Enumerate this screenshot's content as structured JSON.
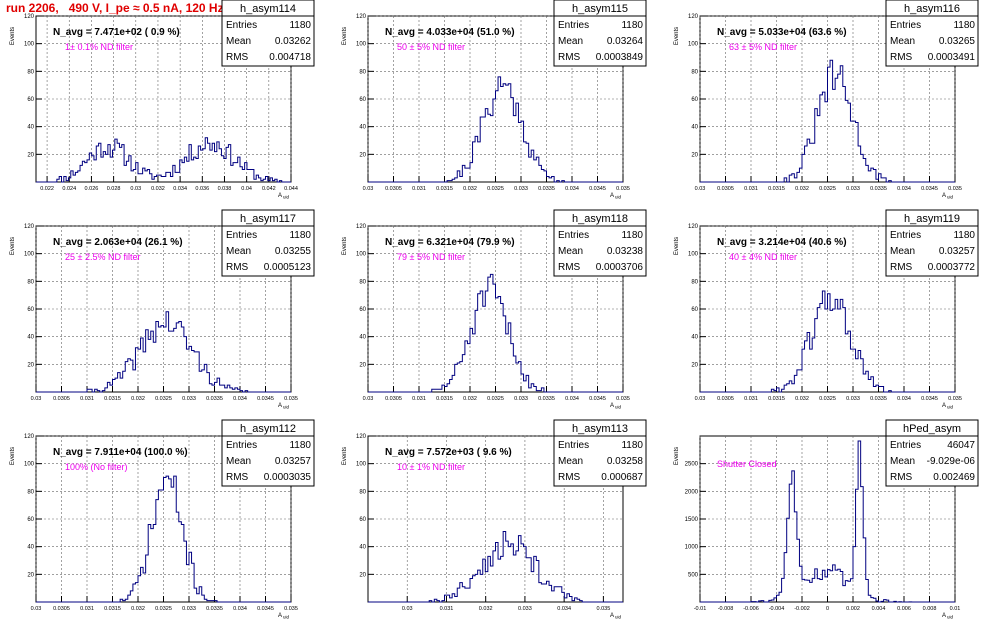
{
  "run_title": "run 2206,   490 V, I_pe ≈ 0.5 nA, 120 Hz",
  "colors": {
    "histogram_line": "#000080",
    "annotation": "#ee00ee",
    "run_title": "#e00000"
  },
  "chart_data": [
    {
      "type": "histogram",
      "name": "h_asym114",
      "ylabel": "Events",
      "xlabel": "A_uid",
      "grid": true,
      "header": "N_avg = 7.471e+02 ( 0.9 %)",
      "annotation": "1± 0.1% ND filter",
      "stats": [
        [
          "Entries",
          "1180"
        ],
        [
          "Mean",
          "0.03262"
        ],
        [
          "RMS",
          "0.004718"
        ]
      ],
      "xlim": [
        0.021,
        0.044
      ],
      "ylim": [
        0,
        120
      ],
      "xticks": [
        "0.022",
        "0.024",
        "0.026",
        "0.028",
        "0.03",
        "0.032",
        "0.034",
        "0.036",
        "0.038",
        "0.04",
        "0.042",
        "0.044"
      ],
      "yticks": [
        "20",
        "40",
        "60",
        "80",
        "100",
        "120"
      ],
      "shape": [
        [
          0.0275,
          26,
          0.0019
        ],
        [
          0.0367,
          28,
          0.0022
        ]
      ],
      "bins": 110,
      "seed": 11
    },
    {
      "type": "histogram",
      "name": "h_asym115",
      "ylabel": "Events",
      "xlabel": "A_uid",
      "grid": true,
      "header": "N_avg = 4.033e+04 (51.0 %)",
      "annotation": "50 ± 5% ND filter",
      "stats": [
        [
          "Entries",
          "1180"
        ],
        [
          "Mean",
          "0.03264"
        ],
        [
          "RMS",
          "0.0003849"
        ]
      ],
      "xlim": [
        0.03,
        0.035
      ],
      "ylim": [
        0,
        120
      ],
      "xticks": [
        "0.03",
        "0.0305",
        "0.031",
        "0.0315",
        "0.032",
        "0.0325",
        "0.033",
        "0.0335",
        "0.034",
        "0.0345",
        "0.035"
      ],
      "yticks": [
        "20",
        "40",
        "60",
        "80",
        "100",
        "120"
      ],
      "shape": [
        [
          0.03264,
          70,
          0.00038
        ]
      ],
      "bins": 100,
      "seed": 21
    },
    {
      "type": "histogram",
      "name": "h_asym116",
      "ylabel": "Events",
      "xlabel": "A_uid",
      "grid": true,
      "header": "N_avg = 5.033e+04 (63.6 %)",
      "annotation": "63 ± 5% ND filter",
      "stats": [
        [
          "Entries",
          "1180"
        ],
        [
          "Mean",
          "0.03265"
        ],
        [
          "RMS",
          "0.0003491"
        ]
      ],
      "xlim": [
        0.03,
        0.035
      ],
      "ylim": [
        0,
        120
      ],
      "xticks": [
        "0.03",
        "0.0305",
        "0.031",
        "0.0315",
        "0.032",
        "0.0325",
        "0.033",
        "0.0335",
        "0.034",
        "0.0345",
        "0.035"
      ],
      "yticks": [
        "20",
        "40",
        "60",
        "80",
        "100",
        "120"
      ],
      "shape": [
        [
          0.03265,
          76,
          0.00035
        ]
      ],
      "bins": 100,
      "seed": 31
    },
    {
      "type": "histogram",
      "name": "h_asym117",
      "ylabel": "Events",
      "xlabel": "A_uid",
      "grid": true,
      "header": "N_avg = 2.063e+04 (26.1 %)",
      "annotation": "25 ± 2.5% ND filter",
      "stats": [
        [
          "Entries",
          "1180"
        ],
        [
          "Mean",
          "0.03255"
        ],
        [
          "RMS",
          "0.0005123"
        ]
      ],
      "xlim": [
        0.03,
        0.035
      ],
      "ylim": [
        0,
        120
      ],
      "xticks": [
        "0.03",
        "0.0305",
        "0.031",
        "0.0315",
        "0.032",
        "0.0325",
        "0.033",
        "0.0335",
        "0.034",
        "0.0345",
        "0.035"
      ],
      "yticks": [
        "20",
        "40",
        "60",
        "80",
        "100",
        "120"
      ],
      "shape": [
        [
          0.03255,
          50,
          0.00051
        ]
      ],
      "bins": 100,
      "seed": 41
    },
    {
      "type": "histogram",
      "name": "h_asym118",
      "ylabel": "Events",
      "xlabel": "A_uid",
      "grid": true,
      "header": "N_avg = 6.321e+04 (79.9 %)",
      "annotation": "79 ± 5% ND filter",
      "stats": [
        [
          "Entries",
          "1180"
        ],
        [
          "Mean",
          "0.03238"
        ],
        [
          "RMS",
          "0.0003706"
        ]
      ],
      "xlim": [
        0.03,
        0.035
      ],
      "ylim": [
        0,
        120
      ],
      "xticks": [
        "0.03",
        "0.0305",
        "0.031",
        "0.0315",
        "0.032",
        "0.0325",
        "0.033",
        "0.0335",
        "0.034",
        "0.0345",
        "0.035"
      ],
      "yticks": [
        "20",
        "40",
        "60",
        "80",
        "100",
        "120"
      ],
      "shape": [
        [
          0.03238,
          72,
          0.00037
        ]
      ],
      "bins": 100,
      "seed": 51
    },
    {
      "type": "histogram",
      "name": "h_asym119",
      "ylabel": "Events",
      "xlabel": "A_uid",
      "grid": true,
      "header": "N_avg = 3.214e+04 (40.6 %)",
      "annotation": "40 ± 4% ND filter",
      "stats": [
        [
          "Entries",
          "1180"
        ],
        [
          "Mean",
          "0.03257"
        ],
        [
          "RMS",
          "0.0003772"
        ]
      ],
      "xlim": [
        0.03,
        0.035
      ],
      "ylim": [
        0,
        120
      ],
      "xticks": [
        "0.03",
        "0.0305",
        "0.031",
        "0.0315",
        "0.032",
        "0.0325",
        "0.033",
        "0.0335",
        "0.034",
        "0.0345",
        "0.035"
      ],
      "yticks": [
        "20",
        "40",
        "60",
        "80",
        "100",
        "120"
      ],
      "shape": [
        [
          0.03257,
          68,
          0.00038
        ]
      ],
      "bins": 100,
      "seed": 61
    },
    {
      "type": "histogram",
      "name": "h_asym112",
      "ylabel": "Events",
      "xlabel": "A_uid",
      "grid": true,
      "header": "N_avg = 7.911e+04 (100.0 %)",
      "annotation": "100% (No filter)",
      "stats": [
        [
          "Entries",
          "1180"
        ],
        [
          "Mean",
          "0.03257"
        ],
        [
          "RMS",
          "0.0003035"
        ]
      ],
      "xlim": [
        0.03,
        0.035
      ],
      "ylim": [
        0,
        120
      ],
      "xticks": [
        "0.03",
        "0.0305",
        "0.031",
        "0.0315",
        "0.032",
        "0.0325",
        "0.033",
        "0.0335",
        "0.034",
        "0.0345",
        "0.035"
      ],
      "yticks": [
        "20",
        "40",
        "60",
        "80",
        "100",
        "120"
      ],
      "shape": [
        [
          0.03257,
          88,
          0.0003
        ]
      ],
      "bins": 100,
      "seed": 71
    },
    {
      "type": "histogram",
      "name": "h_asym113",
      "ylabel": "Events",
      "xlabel": "A_uid",
      "grid": true,
      "header": "N_avg = 7.572e+03 ( 9.6 %)",
      "annotation": "10 ± 1% ND filter",
      "stats": [
        [
          "Entries",
          "1180"
        ],
        [
          "Mean",
          "0.03258"
        ],
        [
          "RMS",
          "0.000687"
        ]
      ],
      "xlim": [
        0.029,
        0.0355
      ],
      "ylim": [
        0,
        120
      ],
      "xticks": [
        "0.03",
        "0.031",
        "0.032",
        "0.033",
        "0.034",
        "0.035"
      ],
      "yticks": [
        "20",
        "40",
        "60",
        "80",
        "100",
        "120"
      ],
      "shape": [
        [
          0.03258,
          42,
          0.00069
        ]
      ],
      "bins": 100,
      "seed": 81
    },
    {
      "type": "histogram",
      "name": "hPed_asym",
      "ylabel": "Events",
      "xlabel": "A_uid",
      "grid": true,
      "header": "",
      "annotation": "Shutter Closed",
      "stats": [
        [
          "Entries",
          "46047"
        ],
        [
          "Mean",
          "-9.029e-06"
        ],
        [
          "RMS",
          "0.002469"
        ]
      ],
      "xlim": [
        -0.01,
        0.01
      ],
      "ylim": [
        0,
        3000
      ],
      "xticks": [
        "-0.01",
        "-0.008",
        "-0.006",
        "-0.004",
        "-0.002",
        "0",
        "0.002",
        "0.004",
        "0.006",
        "0.008",
        "0.01"
      ],
      "yticks": [
        "500",
        "1000",
        "1500",
        "2000",
        "2500"
      ],
      "shape": [
        [
          -0.0028,
          2100,
          0.00035
        ],
        [
          0.0025,
          2550,
          0.00028
        ],
        [
          -0.0001,
          560,
          0.0018
        ]
      ],
      "bins": 100,
      "seed": 91
    }
  ]
}
